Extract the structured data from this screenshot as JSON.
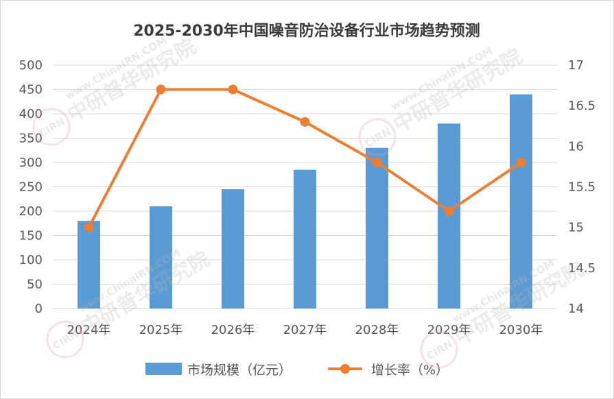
{
  "chart_data": {
    "type": "bar",
    "title": "2025-2030年中国噪音防治设备行业市场趋势预测",
    "categories": [
      "2024年",
      "2025年",
      "2026年",
      "2027年",
      "2028年",
      "2029年",
      "2030年"
    ],
    "series": [
      {
        "name": "市场规模（亿元）",
        "type": "bar",
        "axis": "left",
        "color": "#5b9bd5",
        "values": [
          180,
          210,
          245,
          285,
          330,
          380,
          440
        ]
      },
      {
        "name": "增长率（%）",
        "type": "line",
        "axis": "right",
        "color": "#ed7d31",
        "values": [
          15.0,
          16.7,
          16.7,
          16.3,
          15.8,
          15.2,
          15.8
        ]
      }
    ],
    "y_left": {
      "min": 0,
      "max": 500,
      "step": 50,
      "ticks": [
        "0",
        "50",
        "100",
        "150",
        "200",
        "250",
        "300",
        "350",
        "400",
        "450",
        "500"
      ]
    },
    "y_right": {
      "min": 14,
      "max": 17,
      "step": 0.5,
      "ticks": [
        "14",
        "14.5",
        "15",
        "15.5",
        "16",
        "16.5",
        "17"
      ]
    },
    "grid": true,
    "legend_position": "bottom"
  },
  "watermark": {
    "text": "中研普华研究院",
    "url": "www.ChinaIRN.COM",
    "logo": "CIRN"
  }
}
